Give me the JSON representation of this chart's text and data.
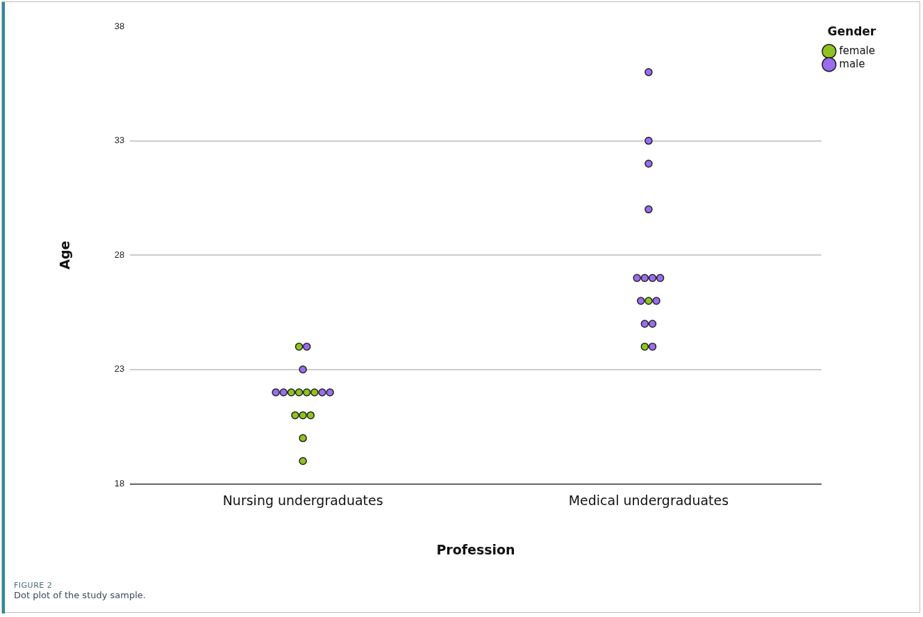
{
  "chart_data": {
    "type": "scatter",
    "xlabel": "Profession",
    "ylabel": "Age",
    "legend_title": "Gender",
    "legend": "top right",
    "grid": "y",
    "marker": "circle",
    "categories": [
      "Nursing undergraduates",
      "Medical undergraduates"
    ],
    "ylim": [
      18,
      38
    ],
    "yticks": [
      18,
      23,
      28,
      33,
      38
    ],
    "series": [
      {
        "name": "female",
        "color": "#8fc31f",
        "x": [
          "Nursing undergraduates",
          "Nursing undergraduates",
          "Nursing undergraduates",
          "Nursing undergraduates",
          "Nursing undergraduates",
          "Nursing undergraduates",
          "Nursing undergraduates",
          "Nursing undergraduates",
          "Nursing undergraduates",
          "Nursing undergraduates",
          "Medical undergraduates",
          "Medical undergraduates"
        ],
        "values": [
          24,
          22,
          22,
          22,
          22,
          21,
          21,
          21,
          20,
          19,
          26,
          24
        ]
      },
      {
        "name": "male",
        "color": "#9b6cf0",
        "x": [
          "Nursing undergraduates",
          "Nursing undergraduates",
          "Nursing undergraduates",
          "Nursing undergraduates",
          "Nursing undergraduates",
          "Nursing undergraduates",
          "Medical undergraduates",
          "Medical undergraduates",
          "Medical undergraduates",
          "Medical undergraduates",
          "Medical undergraduates",
          "Medical undergraduates",
          "Medical undergraduates",
          "Medical undergraduates",
          "Medical undergraduates",
          "Medical undergraduates",
          "Medical undergraduates",
          "Medical undergraduates",
          "Medical undergraduates"
        ],
        "values": [
          24,
          23,
          22,
          22,
          22,
          22,
          36,
          33,
          32,
          30,
          27,
          27,
          27,
          27,
          26,
          26,
          25,
          25,
          24
        ]
      }
    ],
    "annotations": [
      "FIGURE 2",
      "Dot plot of the study sample."
    ]
  }
}
